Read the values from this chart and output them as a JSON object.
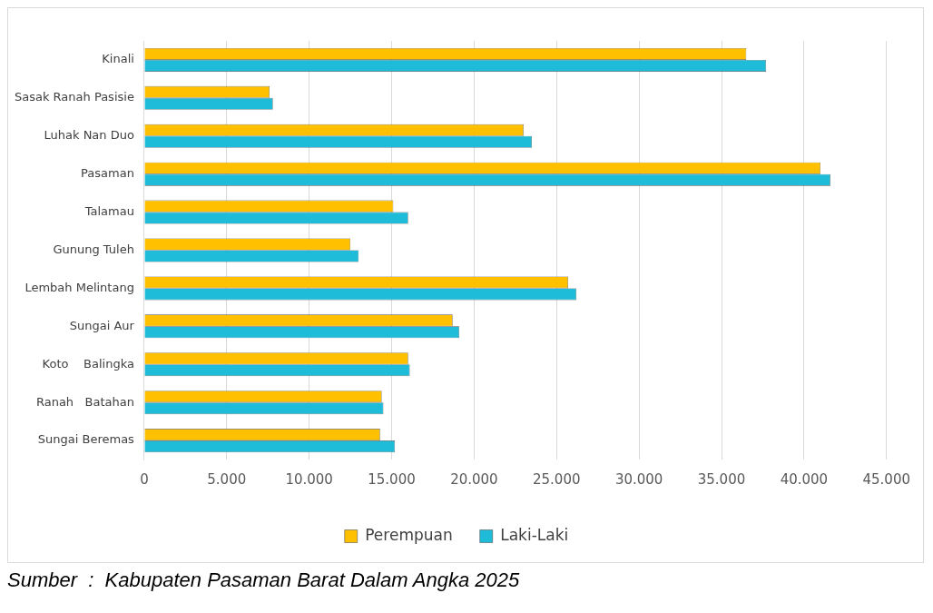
{
  "chart_data": {
    "type": "bar",
    "orientation": "horizontal",
    "categories": [
      "Kinali",
      "Sasak Ranah Pasisie",
      "Luhak Nan Duo",
      "Pasaman",
      "Talamau",
      "Gunung Tuleh",
      "Lembah Melintang",
      "Sungai Aur",
      "Koto    Balingka",
      "Ranah   Batahan",
      "Sungai Beremas"
    ],
    "series": [
      {
        "name": "Perempuan",
        "color": "#ffc000",
        "values": [
          36500,
          7600,
          23000,
          41000,
          15100,
          12500,
          25700,
          18700,
          16000,
          14400,
          14300
        ]
      },
      {
        "name": "Laki-Laki",
        "color": "#1ebcd8",
        "values": [
          37700,
          7800,
          23500,
          41600,
          16000,
          13000,
          26200,
          19100,
          16100,
          14500,
          15200
        ]
      }
    ],
    "xlim": [
      0,
      45000
    ],
    "xticks": [
      0,
      {
        "value": 5000,
        "label": "5.000"
      },
      {
        "value": 10000,
        "label": "10.000"
      },
      {
        "value": 15000,
        "label": "15.000"
      },
      {
        "value": 20000,
        "label": "20.000"
      },
      {
        "value": 25000,
        "label": "25.000"
      },
      {
        "value": 30000,
        "label": "30.000"
      },
      {
        "value": 35000,
        "label": "35.000"
      },
      {
        "value": 40000,
        "label": "40.000"
      },
      {
        "value": 45000,
        "label": "45.000"
      }
    ],
    "grid": "x",
    "legend": "bottom",
    "annotations": [
      "Sumber  :  Kabupaten Pasaman Barat Dalam Angka 2025"
    ]
  }
}
